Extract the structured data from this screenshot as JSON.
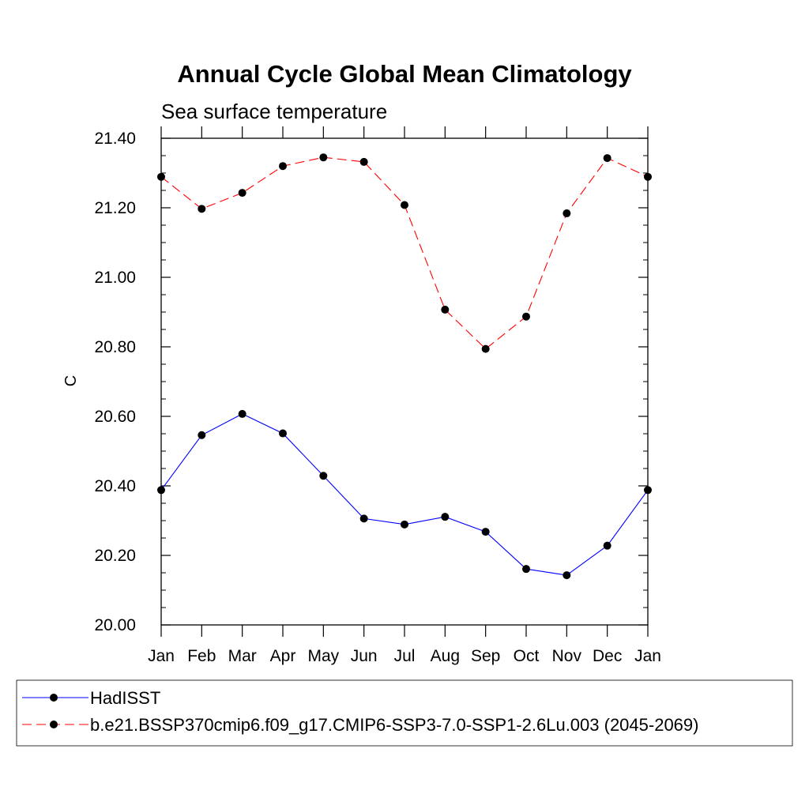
{
  "chart_data": {
    "type": "line",
    "title": "Annual Cycle Global Mean Climatology",
    "subtitle": "Sea surface temperature",
    "xlabel": "",
    "ylabel": "C",
    "categories": [
      "Jan",
      "Feb",
      "Mar",
      "Apr",
      "May",
      "Jun",
      "Jul",
      "Aug",
      "Sep",
      "Oct",
      "Nov",
      "Dec",
      "Jan"
    ],
    "ylim": [
      20.0,
      21.4
    ],
    "yticks": [
      "20.00",
      "20.20",
      "20.40",
      "20.60",
      "20.80",
      "21.00",
      "21.20",
      "21.40"
    ],
    "grid": false,
    "legend_position": "bottom",
    "series": [
      {
        "name": "HadISST",
        "color": "#0000ff",
        "line_style": "solid",
        "marker": "filled-circle",
        "values": [
          20.388,
          20.546,
          20.607,
          20.551,
          20.429,
          20.306,
          20.289,
          20.311,
          20.268,
          20.161,
          20.143,
          20.228,
          20.388
        ]
      },
      {
        "name": "b.e21.BSSP370cmip6.f09_g17.CMIP6-SSP3-7.0-SSP1-2.6Lu.003 (2045-2069)",
        "color": "#ff0000",
        "line_style": "dashed",
        "marker": "filled-circle",
        "values": [
          21.289,
          21.197,
          21.243,
          21.32,
          21.345,
          21.332,
          21.208,
          20.907,
          20.794,
          20.887,
          21.184,
          21.343,
          21.289
        ]
      }
    ]
  }
}
